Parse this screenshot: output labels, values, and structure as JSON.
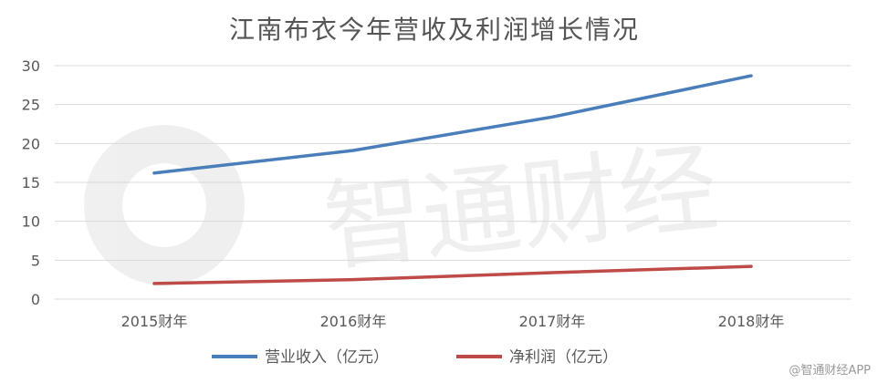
{
  "chart_data": {
    "type": "line",
    "title": "江南布衣今年营收及利润增长情况",
    "categories": [
      "2015财年",
      "2016财年",
      "2017财年",
      "2018财年"
    ],
    "ylim": [
      0,
      30
    ],
    "yticks": [
      0,
      5,
      10,
      15,
      20,
      25,
      30
    ],
    "grid": true,
    "legend_position": "bottom",
    "series": [
      {
        "name": "营业收入（亿元）",
        "color": "#4a7ebb",
        "values": [
          16.2,
          19.1,
          23.4,
          28.7
        ]
      },
      {
        "name": "净利润（亿元）",
        "color": "#be4b48",
        "values": [
          2.0,
          2.5,
          3.4,
          4.2
        ]
      }
    ]
  },
  "watermark": {
    "text": "智通财经",
    "credit": "@智通财经APP"
  }
}
